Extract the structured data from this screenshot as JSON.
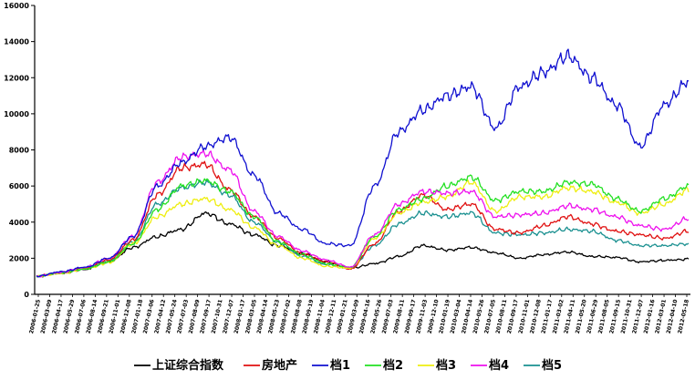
{
  "chart_data": {
    "type": "line",
    "title": "",
    "xlabel": "",
    "ylabel": "",
    "ylim": [
      0,
      16000
    ],
    "y_ticks": [
      "0",
      "2000",
      "4000",
      "6000",
      "8000",
      "10000",
      "12000",
      "14000",
      "16000"
    ],
    "x_tick_labels": [
      "2006-01-25",
      "2006-03-09",
      "2006-04-17",
      "2006-05-29",
      "2006-07-06",
      "2006-08-14",
      "2006-09-21",
      "2006-11-01",
      "2006-12-08",
      "2007-01-18",
      "2007-03-06",
      "2007-04-12",
      "2007-05-24",
      "2007-07-03",
      "2007-08-09",
      "2007-09-17",
      "2007-10-31",
      "2007-12-07",
      "2008-01-17",
      "2008-03-05",
      "2008-04-14",
      "2008-05-23",
      "2008-07-02",
      "2008-08-08",
      "2008-09-19",
      "2008-11-04",
      "2008-12-11",
      "2009-01-21",
      "2009-03-09",
      "2009-04-16",
      "2009-05-26",
      "2009-07-03",
      "2009-08-11",
      "2009-09-17",
      "2009-11-03",
      "2009-12-10",
      "2010-01-19",
      "2010-03-04",
      "2010-04-14",
      "2010-05-26",
      "2010-07-05",
      "2010-08-11",
      "2010-09-17",
      "2010-11-01",
      "2010-12-08",
      "2011-01-17",
      "2011-03-02",
      "2011-04-11",
      "2011-05-20",
      "2011-06-29",
      "2011-08-05",
      "2011-09-15",
      "2011-10-31",
      "2011-12-07",
      "2012-01-16",
      "2012-03-01",
      "2012-04-10",
      "2012-05-18"
    ],
    "grid": false,
    "legend_position": "bottom",
    "series": [
      {
        "name": "上证综合指数",
        "color": "#000000",
        "values": [
          1000,
          1150,
          1380,
          1800,
          2600,
          3200,
          3600,
          4500,
          3900,
          3300,
          2700,
          2250,
          1800,
          1450,
          1700,
          2100,
          2700,
          2450,
          2600,
          2300,
          2000,
          2200,
          2350,
          2100,
          2050,
          1800,
          1880,
          1950
        ]
      },
      {
        "name": "房地产",
        "color": "#e01010",
        "values": [
          1000,
          1200,
          1450,
          1900,
          3000,
          5500,
          7000,
          7200,
          5800,
          4300,
          3100,
          2250,
          1800,
          1400,
          2800,
          4600,
          5500,
          4700,
          5000,
          3600,
          3400,
          3800,
          4300,
          3900,
          3500,
          3300,
          3100,
          3500
        ]
      },
      {
        "name": "档1",
        "color": "#1010d0",
        "values": [
          1000,
          1250,
          1500,
          2000,
          3200,
          6000,
          7300,
          8200,
          8700,
          6600,
          4500,
          3600,
          2800,
          2700,
          6000,
          9000,
          10200,
          11000,
          11500,
          9200,
          11500,
          12300,
          13200,
          12000,
          10500,
          8200,
          10500,
          11800
        ]
      },
      {
        "name": "档2",
        "color": "#22e022",
        "values": [
          1000,
          1200,
          1400,
          1800,
          2800,
          4700,
          6000,
          6300,
          5700,
          4300,
          2900,
          2200,
          1700,
          1500,
          3200,
          4700,
          5300,
          6000,
          6500,
          5200,
          5700,
          5700,
          6200,
          6100,
          5300,
          4600,
          5300,
          6000
        ]
      },
      {
        "name": "档3",
        "color": "#eeee10",
        "values": [
          1000,
          1150,
          1400,
          1750,
          2800,
          4300,
          5000,
          5300,
          4700,
          3700,
          2700,
          2000,
          1550,
          1450,
          3100,
          4500,
          5100,
          5400,
          6200,
          4600,
          5400,
          5400,
          5900,
          5700,
          5100,
          4500,
          5000,
          5800
        ]
      },
      {
        "name": "档4",
        "color": "#ee10ee",
        "values": [
          1000,
          1220,
          1500,
          2000,
          3200,
          6200,
          7600,
          7800,
          6900,
          4600,
          3200,
          2400,
          1900,
          1500,
          3300,
          5000,
          5700,
          5600,
          5700,
          4300,
          4400,
          4500,
          4900,
          4700,
          4300,
          3800,
          3600,
          4200
        ]
      },
      {
        "name": "档5",
        "color": "#1a9090",
        "values": [
          1000,
          1200,
          1450,
          1850,
          2900,
          5000,
          5900,
          6200,
          5500,
          4000,
          2900,
          2100,
          1650,
          1450,
          2700,
          3900,
          4500,
          4300,
          4500,
          3400,
          3300,
          3400,
          3600,
          3500,
          3000,
          2700,
          2700,
          2800
        ]
      }
    ]
  }
}
